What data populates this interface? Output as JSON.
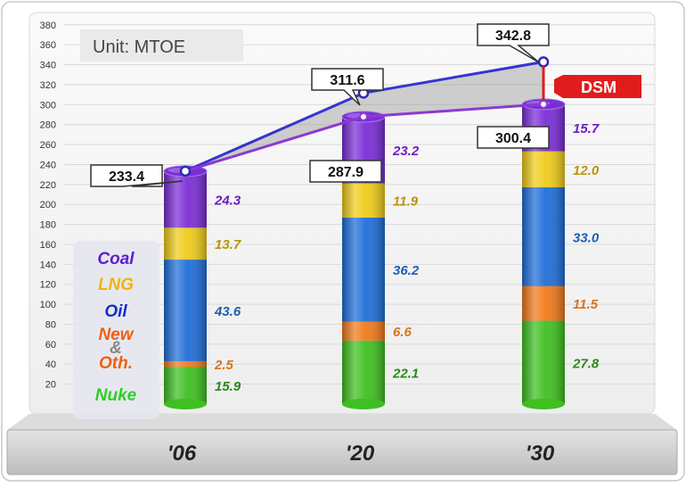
{
  "chart_data": {
    "type": "bar",
    "unit_label": "Unit: MTOE",
    "categories": [
      "'06",
      "'20",
      "'30"
    ],
    "ylim": [
      0,
      380
    ],
    "yticks": [
      20,
      40,
      60,
      80,
      100,
      120,
      140,
      160,
      180,
      200,
      220,
      240,
      260,
      280,
      300,
      320,
      340,
      360,
      380
    ],
    "grid": true,
    "stack_order": [
      "Nuke",
      "New & Oth.",
      "Oil",
      "LNG",
      "Coal"
    ],
    "series": [
      {
        "name": "Nuke",
        "color": "#3fbf21",
        "labelColor": "#2a8a1a",
        "percents": [
          "15.9",
          "22.1",
          "27.8"
        ]
      },
      {
        "name": "New & Oth.",
        "color": "#f07a1a",
        "labelColor": "#d9731a",
        "percents": [
          "2.5",
          "6.6",
          "11.5"
        ]
      },
      {
        "name": "Oil",
        "color": "#1f6ed8",
        "labelColor": "#1f5fb0",
        "percents": [
          "43.6",
          "36.2",
          "33.0"
        ]
      },
      {
        "name": "LNG",
        "color": "#efcc1a",
        "labelColor": "#b8940a",
        "percents": [
          "13.7",
          "11.9",
          "12.0"
        ]
      },
      {
        "name": "Coal",
        "color": "#7a2dd6",
        "labelColor": "#6a1fc0",
        "percents": [
          "24.3",
          "23.2",
          "15.7"
        ]
      }
    ],
    "totals": [
      233.4,
      287.9,
      300.4
    ],
    "bau_line": [
      233.4,
      311.6,
      342.8
    ],
    "total_labels": [
      "233.4",
      "287.9",
      "300.4"
    ],
    "bau_labels": [
      "311.6",
      "342.8"
    ],
    "dsm_label": "DSM",
    "legend": {
      "placement": "left",
      "items": [
        {
          "text": "Coal",
          "color": "#5a1fd0"
        },
        {
          "text": "LNG",
          "color": "#f0b400"
        },
        {
          "text": "Oil",
          "color": "#1030c8"
        },
        {
          "text": "New",
          "color": "#f06010"
        },
        {
          "text": "&",
          "color": "#888888"
        },
        {
          "text": "Oth.",
          "color": "#f06010"
        },
        {
          "text": "Nuke",
          "color": "#2ad020"
        }
      ]
    }
  }
}
